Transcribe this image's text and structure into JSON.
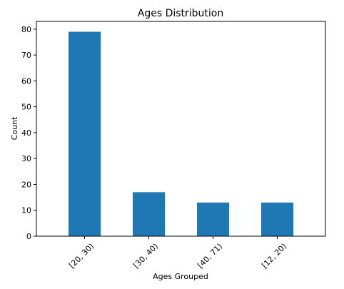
{
  "chart_data": {
    "type": "bar",
    "title": "Ages Distribution",
    "xlabel": "Ages Grouped",
    "ylabel": "Count",
    "categories": [
      "[20, 30)",
      "[30, 40)",
      "[40, 71)",
      "[12, 20)"
    ],
    "values": [
      79,
      17,
      13,
      13
    ],
    "ylim": [
      0,
      83
    ],
    "yticks": [
      0,
      10,
      20,
      30,
      40,
      50,
      60,
      70,
      80
    ],
    "grid": false,
    "legend": "none",
    "colors": {
      "bar": "#1f77b4",
      "axis": "#000000",
      "background": "#ffffff"
    }
  }
}
